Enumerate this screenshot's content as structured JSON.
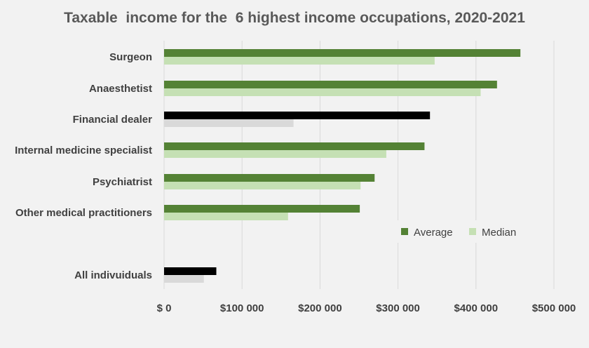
{
  "chart_data": {
    "type": "bar",
    "orientation": "horizontal",
    "title": "Taxable  income for the  6 highest income occupations, 2020-2021",
    "categories": [
      "Surgeon",
      "Anaesthetist",
      "Financial dealer",
      "Internal medicine specialist",
      "Psychiatrist",
      "Other medical practitioners",
      "All indivuiduals"
    ],
    "series": [
      {
        "name": "Average",
        "values": [
          457000,
          427000,
          341000,
          334000,
          270000,
          251000,
          67000
        ]
      },
      {
        "name": "Median",
        "values": [
          347000,
          406000,
          166000,
          285000,
          252000,
          159000,
          51000
        ]
      }
    ],
    "highlight_categories": [
      "Financial dealer",
      "All indivuiduals"
    ],
    "colors": {
      "average": "#548235",
      "median": "#c5e0b4",
      "highlight_average": "#000000",
      "highlight_median": "#d9d9d9",
      "grid": "#d9d9d9",
      "background": "#f2f2f2"
    },
    "xlim": [
      0,
      500000
    ],
    "x_ticks": [
      0,
      100000,
      200000,
      300000,
      400000,
      500000
    ],
    "x_tick_labels": [
      "$ 0",
      "$100 000",
      "$200 000",
      "$300 000",
      "$400 000",
      "$500 000"
    ],
    "grid": true,
    "legend_position": "bottom-right"
  }
}
